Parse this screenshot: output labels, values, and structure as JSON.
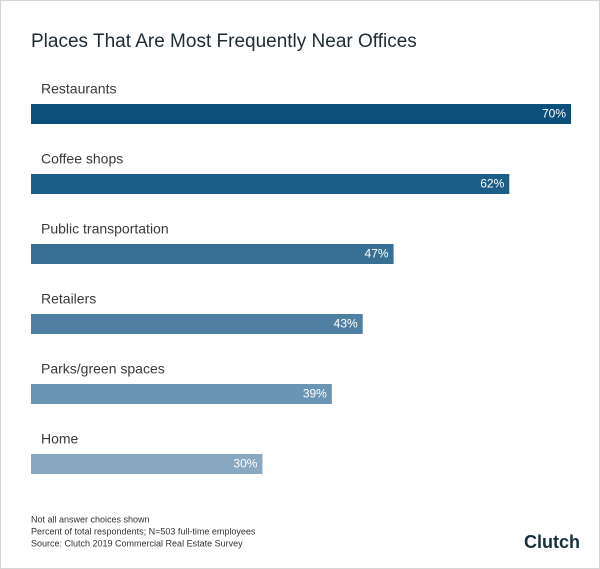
{
  "chart_data": {
    "type": "bar",
    "orientation": "horizontal",
    "title": "Places That Are Most Frequently Near Offices",
    "categories": [
      "Restaurants",
      "Coffee shops",
      "Public transportation",
      "Retailers",
      "Parks/green spaces",
      "Home"
    ],
    "values": [
      70,
      62,
      47,
      43,
      39,
      30
    ],
    "value_labels": [
      "70%",
      "62%",
      "47%",
      "43%",
      "39%",
      "30%"
    ],
    "colors": [
      "#0b4f7a",
      "#1c5e87",
      "#377094",
      "#4f80a2",
      "#6a95b3",
      "#87a8c0"
    ],
    "notes": [
      "Not all answer choices shown",
      "Percent of total respondents; N=503 full-time employees",
      "Source: Clutch 2019 Commercial Real Estate Survey"
    ],
    "brand": "Clutch"
  }
}
